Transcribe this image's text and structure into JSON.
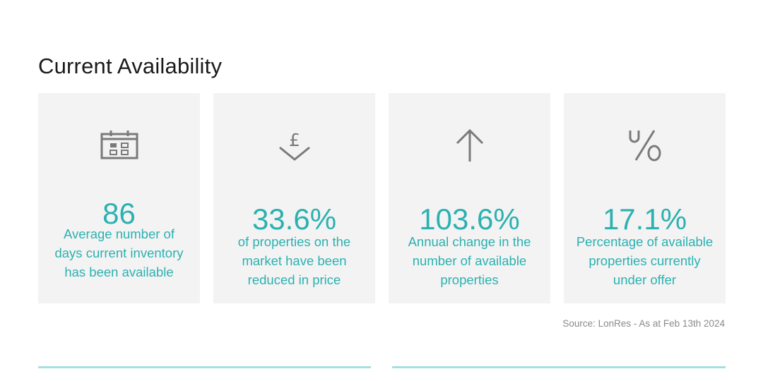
{
  "section": {
    "title": "Current Availability"
  },
  "cards": [
    {
      "icon": "calendar-icon",
      "value": "86",
      "description": "Average number of days current inventory has been available"
    },
    {
      "icon": "pound-price-down-icon",
      "value": "33.6%",
      "description": "of properties on the market have been reduced in price"
    },
    {
      "icon": "arrow-up-icon",
      "value": "103.6%",
      "description": "Annual change in the number of available properties"
    },
    {
      "icon": "percent-icon",
      "value": "17.1%",
      "description": "Percentage of available properties currently under offer"
    }
  ],
  "source": "Source: LonRes - As at Feb 13th 2024",
  "colors": {
    "accent": "#2bb1b0",
    "card_bg": "#f3f3f3",
    "icon": "#7a7a7a",
    "rule": "#a7dede"
  }
}
